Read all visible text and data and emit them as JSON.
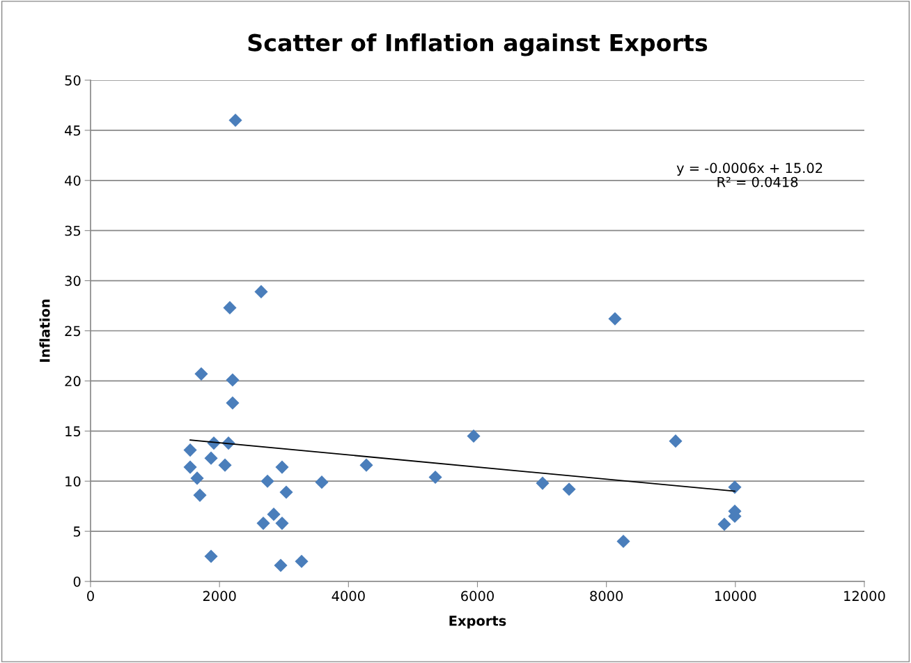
{
  "chart_data": {
    "type": "scatter",
    "title": "Scatter of Inflation against Exports",
    "xlabel": "Exports",
    "ylabel": "Inflation",
    "xlim": [
      0,
      12000
    ],
    "xticks": [
      0,
      2000,
      4000,
      6000,
      8000,
      10000,
      12000
    ],
    "ylim": [
      0,
      50
    ],
    "yticks": [
      0,
      5,
      10,
      15,
      20,
      25,
      30,
      35,
      40,
      45,
      50
    ],
    "grid": "y",
    "legend": false,
    "annotations": [
      "y = -0.0006x + 15.02",
      "R² = 0.0418"
    ],
    "series": [
      {
        "marker": "diamond",
        "color": "#4a7ebb",
        "x": [
          2247,
          2646,
          2160,
          1717,
          2203,
          2203,
          1545,
          1912,
          2139,
          1545,
          1869,
          2085,
          1653,
          1696,
          1869,
          2744,
          2970,
          3035,
          2841,
          2679,
          2970,
          2949,
          3273,
          3586,
          4277,
          5347,
          5941,
          7010,
          7421,
          8133,
          8263,
          9073,
          9991,
          9991,
          9991,
          9829
        ],
        "values": [
          46.0,
          28.9,
          27.3,
          20.7,
          20.1,
          17.8,
          13.1,
          13.8,
          13.8,
          11.4,
          12.3,
          11.6,
          10.3,
          8.6,
          2.5,
          10.0,
          11.4,
          8.9,
          6.7,
          5.8,
          5.8,
          1.6,
          2.0,
          9.9,
          11.6,
          10.4,
          14.5,
          9.8,
          9.2,
          26.2,
          4.0,
          14.0,
          9.4,
          7.0,
          6.5,
          5.7
        ]
      },
      {
        "type": "line",
        "marker": "none",
        "color": "#000000",
        "x": [
          1545,
          9991
        ],
        "values": [
          14.1,
          9.0
        ]
      }
    ]
  }
}
